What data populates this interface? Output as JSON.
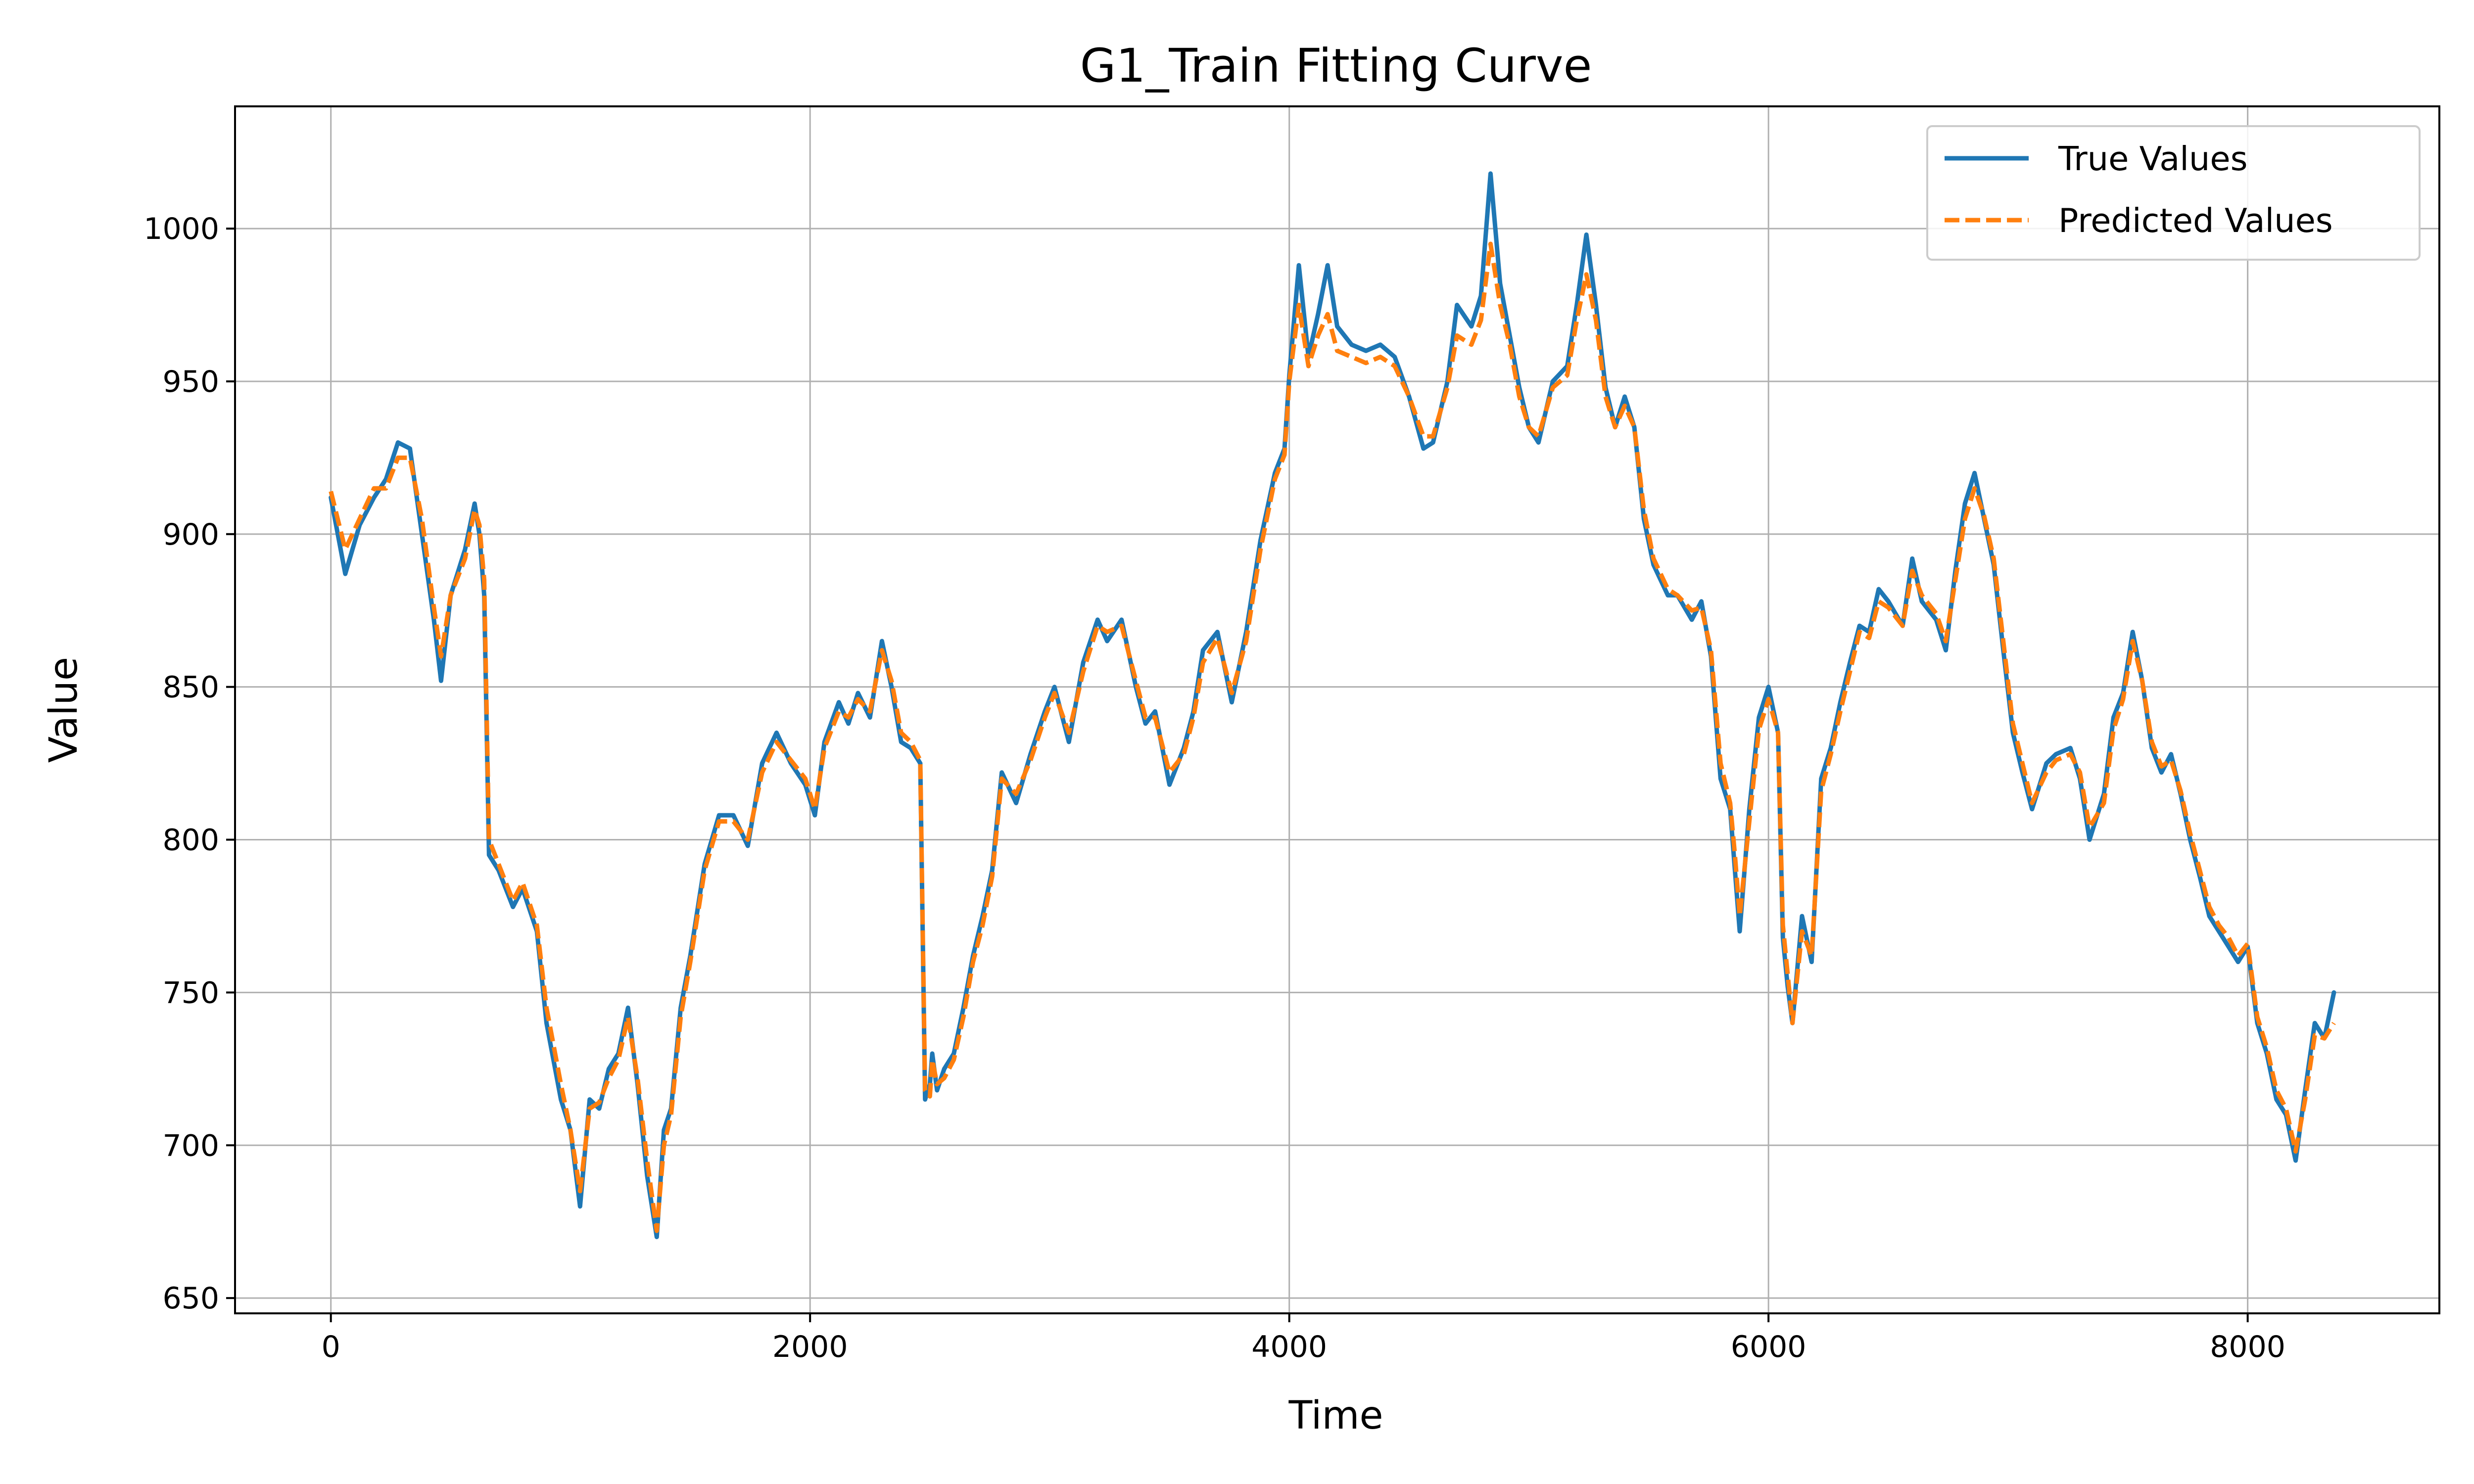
{
  "chart_data": {
    "type": "line",
    "title": "G1_Train Fitting Curve",
    "xlabel": "Time",
    "ylabel": "Value",
    "xlim": [
      -400,
      8800
    ],
    "ylim": [
      645,
      1040
    ],
    "xticks": [
      0,
      2000,
      4000,
      6000,
      8000
    ],
    "yticks": [
      650,
      700,
      750,
      800,
      850,
      900,
      950,
      1000
    ],
    "grid": true,
    "legend_position": "top-right",
    "series": [
      {
        "name": "True Values",
        "color": "#1f77b4",
        "style": "solid",
        "x": [
          0,
          60,
          120,
          180,
          230,
          280,
          330,
          380,
          430,
          460,
          500,
          560,
          600,
          620,
          640,
          660,
          700,
          760,
          800,
          860,
          900,
          960,
          1000,
          1040,
          1080,
          1120,
          1160,
          1200,
          1240,
          1280,
          1320,
          1360,
          1390,
          1420,
          1460,
          1500,
          1560,
          1620,
          1680,
          1740,
          1800,
          1860,
          1920,
          1980,
          2020,
          2060,
          2120,
          2160,
          2200,
          2250,
          2300,
          2340,
          2380,
          2420,
          2460,
          2480,
          2500,
          2510,
          2530,
          2560,
          2600,
          2640,
          2680,
          2720,
          2760,
          2800,
          2860,
          2920,
          2980,
          3020,
          3080,
          3140,
          3200,
          3240,
          3300,
          3360,
          3400,
          3440,
          3500,
          3560,
          3600,
          3640,
          3700,
          3760,
          3820,
          3880,
          3940,
          3980,
          4000,
          4040,
          4080,
          4120,
          4160,
          4200,
          4260,
          4320,
          4380,
          4440,
          4500,
          4560,
          4600,
          4660,
          4700,
          4760,
          4800,
          4840,
          4880,
          4920,
          4960,
          5000,
          5040,
          5100,
          5160,
          5200,
          5240,
          5280,
          5320,
          5360,
          5400,
          5440,
          5480,
          5520,
          5580,
          5620,
          5680,
          5720,
          5760,
          5800,
          5840,
          5860,
          5880,
          5920,
          5960,
          6000,
          6040,
          6060,
          6080,
          6100,
          6140,
          6180,
          6220,
          6260,
          6300,
          6340,
          6380,
          6420,
          6460,
          6500,
          6560,
          6600,
          6640,
          6700,
          6740,
          6780,
          6820,
          6860,
          6900,
          6940,
          6980,
          7020,
          7060,
          7100,
          7160,
          7200,
          7260,
          7300,
          7340,
          7400,
          7440,
          7480,
          7520,
          7560,
          7600,
          7640,
          7680,
          7720,
          7760,
          7800,
          7840,
          7880,
          7920,
          7960,
          8000,
          8040,
          8080,
          8120,
          8160,
          8200,
          8240,
          8280,
          8320,
          8360
        ],
        "y": [
          912,
          887,
          903,
          912,
          918,
          930,
          928,
          900,
          872,
          852,
          880,
          895,
          910,
          900,
          880,
          795,
          790,
          778,
          784,
          770,
          740,
          715,
          705,
          680,
          715,
          712,
          725,
          730,
          745,
          720,
          690,
          670,
          705,
          712,
          745,
          762,
          792,
          808,
          808,
          798,
          825,
          835,
          825,
          818,
          808,
          832,
          845,
          838,
          848,
          840,
          865,
          850,
          832,
          830,
          825,
          715,
          720,
          730,
          718,
          725,
          730,
          745,
          762,
          775,
          790,
          822,
          812,
          828,
          842,
          850,
          832,
          858,
          872,
          865,
          872,
          850,
          838,
          842,
          818,
          830,
          842,
          862,
          868,
          845,
          868,
          898,
          920,
          928,
          952,
          988,
          958,
          972,
          988,
          968,
          962,
          960,
          962,
          958,
          945,
          928,
          930,
          950,
          975,
          968,
          978,
          1018,
          982,
          965,
          948,
          935,
          930,
          950,
          955,
          975,
          998,
          975,
          948,
          935,
          945,
          935,
          905,
          890,
          880,
          880,
          872,
          878,
          860,
          820,
          810,
          790,
          770,
          810,
          840,
          850,
          835,
          768,
          752,
          740,
          775,
          760,
          820,
          830,
          845,
          858,
          870,
          868,
          882,
          878,
          870,
          892,
          878,
          872,
          862,
          888,
          910,
          920,
          905,
          890,
          862,
          835,
          822,
          810,
          825,
          828,
          830,
          820,
          800,
          815,
          840,
          848,
          868,
          852,
          830,
          822,
          828,
          815,
          800,
          788,
          775,
          770,
          765,
          760,
          765,
          740,
          730,
          715,
          710,
          695,
          718,
          740,
          735,
          750
        ]
      },
      {
        "name": "Predicted Values",
        "color": "#ff7f0e",
        "style": "dashed",
        "x": [
          0,
          60,
          120,
          180,
          230,
          280,
          330,
          380,
          430,
          460,
          500,
          560,
          600,
          620,
          640,
          660,
          700,
          760,
          800,
          860,
          900,
          960,
          1000,
          1040,
          1080,
          1120,
          1160,
          1200,
          1240,
          1280,
          1320,
          1360,
          1390,
          1420,
          1460,
          1500,
          1560,
          1620,
          1680,
          1740,
          1800,
          1860,
          1920,
          1980,
          2020,
          2060,
          2120,
          2160,
          2200,
          2250,
          2300,
          2340,
          2380,
          2420,
          2460,
          2480,
          2500,
          2510,
          2530,
          2560,
          2600,
          2640,
          2680,
          2720,
          2760,
          2800,
          2860,
          2920,
          2980,
          3020,
          3080,
          3140,
          3200,
          3240,
          3300,
          3360,
          3400,
          3440,
          3500,
          3560,
          3600,
          3640,
          3700,
          3760,
          3820,
          3880,
          3940,
          3980,
          4000,
          4040,
          4080,
          4120,
          4160,
          4200,
          4260,
          4320,
          4380,
          4440,
          4500,
          4560,
          4600,
          4660,
          4700,
          4760,
          4800,
          4840,
          4880,
          4920,
          4960,
          5000,
          5040,
          5100,
          5160,
          5200,
          5240,
          5280,
          5320,
          5360,
          5400,
          5440,
          5480,
          5520,
          5580,
          5620,
          5680,
          5720,
          5760,
          5800,
          5840,
          5860,
          5880,
          5920,
          5960,
          6000,
          6040,
          6060,
          6080,
          6100,
          6140,
          6180,
          6220,
          6260,
          6300,
          6340,
          6380,
          6420,
          6460,
          6500,
          6560,
          6600,
          6640,
          6700,
          6740,
          6780,
          6820,
          6860,
          6900,
          6940,
          6980,
          7020,
          7060,
          7100,
          7160,
          7200,
          7260,
          7300,
          7340,
          7400,
          7440,
          7480,
          7520,
          7560,
          7600,
          7640,
          7680,
          7720,
          7760,
          7800,
          7840,
          7880,
          7920,
          7960,
          8000,
          8040,
          8080,
          8120,
          8160,
          8200,
          8240,
          8280,
          8320,
          8360
        ],
        "y": [
          914,
          895,
          905,
          915,
          915,
          925,
          925,
          905,
          876,
          860,
          880,
          892,
          908,
          903,
          885,
          800,
          792,
          780,
          786,
          772,
          745,
          720,
          705,
          685,
          712,
          714,
          722,
          728,
          742,
          722,
          695,
          672,
          700,
          710,
          742,
          760,
          790,
          806,
          806,
          800,
          822,
          832,
          826,
          820,
          810,
          830,
          842,
          840,
          846,
          842,
          862,
          852,
          835,
          832,
          826,
          718,
          716,
          728,
          720,
          722,
          728,
          742,
          760,
          772,
          788,
          820,
          815,
          826,
          840,
          848,
          835,
          855,
          870,
          868,
          870,
          852,
          840,
          840,
          822,
          828,
          840,
          858,
          866,
          848,
          865,
          895,
          918,
          926,
          950,
          975,
          955,
          965,
          972,
          960,
          958,
          956,
          958,
          955,
          945,
          932,
          932,
          948,
          965,
          962,
          970,
          995,
          975,
          962,
          945,
          935,
          932,
          948,
          952,
          970,
          985,
          970,
          945,
          935,
          942,
          935,
          908,
          892,
          882,
          880,
          875,
          876,
          862,
          825,
          812,
          795,
          775,
          806,
          836,
          846,
          835,
          772,
          756,
          740,
          770,
          762,
          816,
          828,
          842,
          855,
          868,
          866,
          878,
          876,
          870,
          888,
          880,
          874,
          865,
          885,
          905,
          915,
          906,
          892,
          865,
          838,
          825,
          812,
          822,
          826,
          828,
          822,
          804,
          812,
          836,
          846,
          865,
          852,
          832,
          824,
          826,
          816,
          802,
          790,
          778,
          772,
          768,
          762,
          766,
          742,
          732,
          718,
          712,
          698,
          715,
          736,
          735,
          740
        ]
      }
    ]
  }
}
